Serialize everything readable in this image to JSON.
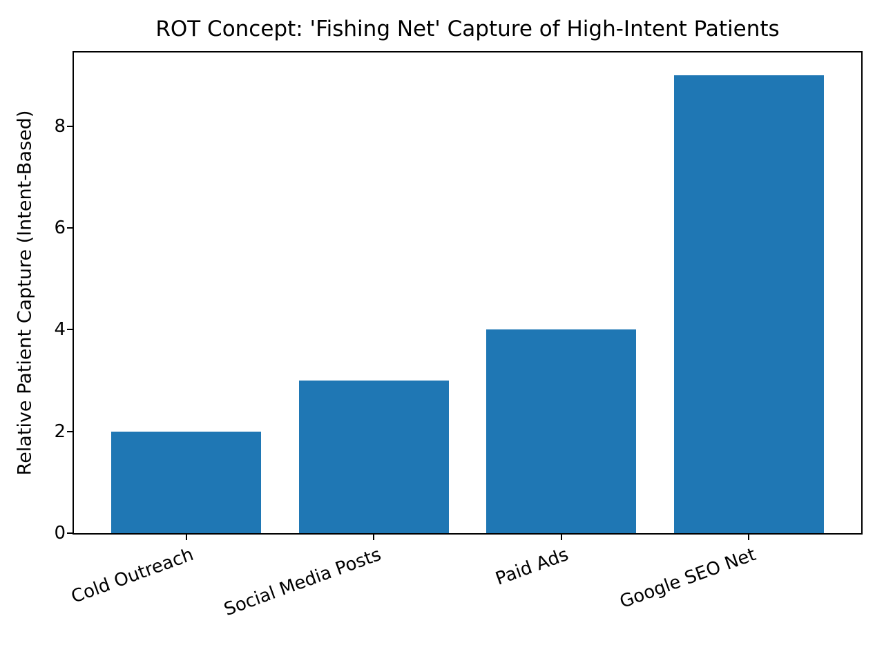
{
  "page": {
    "background": "#ffffff"
  },
  "chart_data": {
    "type": "bar",
    "title": "ROT Concept: 'Fishing Net' Capture of High-Intent Patients",
    "categories": [
      "Cold Outreach",
      "Social Media Posts",
      "Paid Ads",
      "Google SEO Net"
    ],
    "values": [
      2,
      3,
      4,
      9
    ],
    "xlabel": "",
    "ylabel": "Relative Patient Capture (Intent-Based)",
    "ylim": [
      0,
      9.45
    ],
    "yticks": [
      0,
      2,
      4,
      6,
      8
    ],
    "bar_color": "#1f77b4",
    "axis_color": "#000000",
    "text_color": "#000000",
    "xtick_rotation_deg": 20,
    "bar_width_fraction": 0.8,
    "grid": false,
    "legend": false
  }
}
